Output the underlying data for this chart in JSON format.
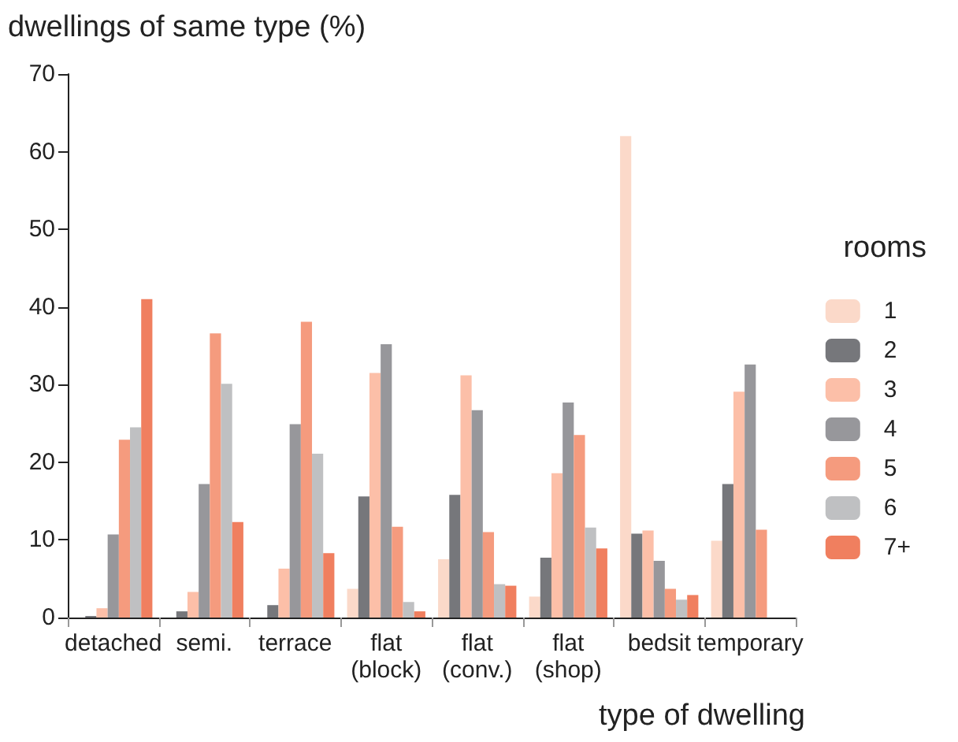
{
  "chart_data": {
    "type": "bar",
    "ylabel": "dwellings of same type (%)",
    "xlabel": "type of dwelling",
    "legend_title": "rooms",
    "categories": [
      "detached",
      "semi.",
      "terrace",
      "flat\n(block)",
      "flat\n(conv.)",
      "flat\n(shop)",
      "bedsit",
      "temporary"
    ],
    "series": [
      {
        "name": "1",
        "color": "#fbd9c9",
        "values": [
          null,
          null,
          null,
          3.7,
          7.5,
          2.7,
          62,
          9.9
        ]
      },
      {
        "name": "2",
        "color": "#76777b",
        "values": [
          0.2,
          0.8,
          1.6,
          15.6,
          15.8,
          7.7,
          10.8,
          17.2
        ]
      },
      {
        "name": "3",
        "color": "#fcbfa8",
        "values": [
          1.2,
          3.3,
          6.3,
          31.5,
          31.2,
          18.6,
          11.2,
          29.1
        ]
      },
      {
        "name": "4",
        "color": "#97979b",
        "values": [
          10.7,
          17.2,
          24.9,
          35.2,
          26.7,
          27.7,
          7.3,
          32.6
        ]
      },
      {
        "name": "5",
        "color": "#f59b7e",
        "values": [
          22.9,
          36.6,
          38.1,
          11.7,
          11.0,
          23.5,
          3.7,
          11.3
        ]
      },
      {
        "name": "6",
        "color": "#bfc0c2",
        "values": [
          24.5,
          30.1,
          21.1,
          2.0,
          4.3,
          11.6,
          2.3,
          0
        ]
      },
      {
        "name": "7+",
        "color": "#f07f5f",
        "values": [
          41,
          12.3,
          8.3,
          0.8,
          4.1,
          8.9,
          2.9,
          0
        ]
      }
    ],
    "ylim": [
      0,
      70
    ],
    "yticks": [
      0,
      10,
      20,
      30,
      40,
      50,
      60,
      70
    ],
    "grid": false,
    "legend": "right"
  }
}
